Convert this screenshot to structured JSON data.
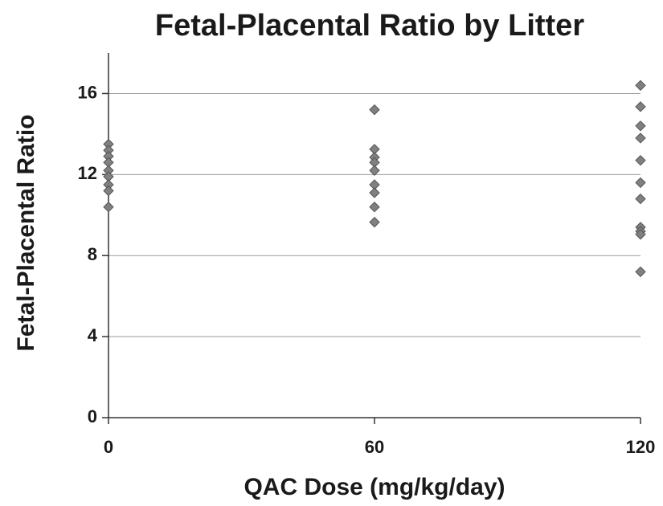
{
  "chart_data": {
    "type": "scatter",
    "title": "Fetal-Placental Ratio by Litter",
    "x_label": "QAC Dose (mg/kg/day)",
    "y_label": "Fetal-Placental Ratio",
    "x": [
      0,
      0,
      0,
      0,
      0,
      0,
      0,
      0,
      0,
      60,
      60,
      60,
      60,
      60,
      60,
      60,
      60,
      60,
      120,
      120,
      120,
      120,
      120,
      120,
      120,
      120,
      120,
      120,
      120
    ],
    "y": [
      13.5,
      13.2,
      12.9,
      12.6,
      12.2,
      11.9,
      11.5,
      11.2,
      10.4,
      15.2,
      13.25,
      12.85,
      12.6,
      12.2,
      11.5,
      11.1,
      10.4,
      9.65,
      16.4,
      15.35,
      14.4,
      13.8,
      12.7,
      11.6,
      10.8,
      9.4,
      9.2,
      9.05,
      7.2
    ],
    "color": "#808080",
    "xlim": [
      0,
      120
    ],
    "xticks": [
      0,
      60,
      120
    ],
    "ylim": [
      0,
      18
    ],
    "yticks": [
      0,
      4,
      8,
      12,
      16
    ],
    "grid": true
  }
}
